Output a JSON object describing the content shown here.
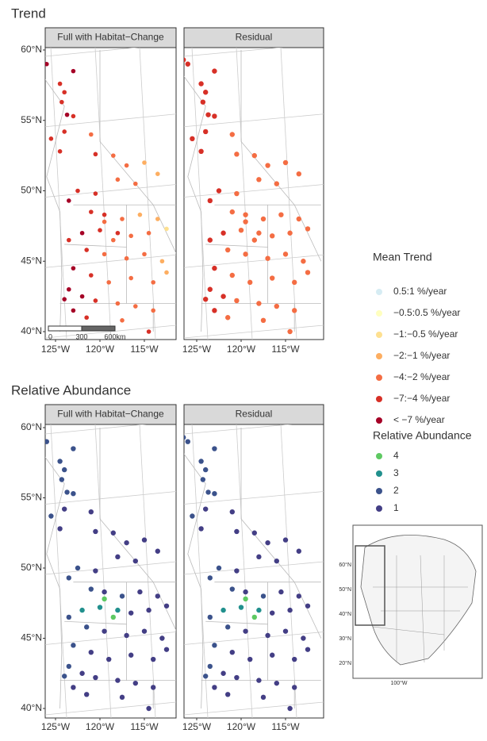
{
  "sections": [
    {
      "title": "Trend",
      "panels": [
        "Full with Habitat−Change",
        "Residual"
      ]
    },
    {
      "title": "Relative Abundance",
      "panels": [
        "Full with Habitat−Change",
        "Residual"
      ]
    }
  ],
  "lat_ticks": [
    {
      "value": 60,
      "label": "60°N"
    },
    {
      "value": 55,
      "label": "55°N"
    },
    {
      "value": 50,
      "label": "50°N"
    },
    {
      "value": 45,
      "label": "45°N"
    },
    {
      "value": 40,
      "label": "40°N"
    }
  ],
  "lon_ticks": [
    {
      "value": -125,
      "label": "125°W"
    },
    {
      "value": -120,
      "label": "120°W"
    },
    {
      "value": -115,
      "label": "115°W"
    }
  ],
  "scale_bar": [
    "0",
    "300",
    "600km"
  ],
  "trend_legend": {
    "title": "Mean Trend",
    "entries": [
      {
        "label": "0.5:1 %/year",
        "color": "#d6ecf3"
      },
      {
        "label": "−0.5:0.5 %/year",
        "color": "#ffffbf"
      },
      {
        "label": "−1:−0.5 %/year",
        "color": "#fee090"
      },
      {
        "label": "−2:−1 %/year",
        "color": "#fdae61"
      },
      {
        "label": "−4:−2 %/year",
        "color": "#f46d43"
      },
      {
        "label": "−7:−4 %/year",
        "color": "#d73027"
      },
      {
        "label": "< −7 %/year",
        "color": "#a50026"
      }
    ]
  },
  "abundance_legend": {
    "title": "Relative Abundance",
    "entries": [
      {
        "value": 4,
        "color": "#5ec962"
      },
      {
        "value": 3,
        "color": "#21908d"
      },
      {
        "value": 2,
        "color": "#3b528b"
      },
      {
        "value": 1,
        "color": "#433e85"
      }
    ]
  },
  "inset": {
    "lat_labels": [
      "60°N",
      "50°N",
      "40°N",
      "30°N",
      "20°N"
    ],
    "lon_label": "100°W"
  },
  "sites": [
    [
      -126.5,
      59.3,
      6,
      5,
      2
    ],
    [
      -126,
      59,
      6,
      5,
      2
    ],
    [
      -123,
      58.5,
      6,
      5,
      2
    ],
    [
      -124.5,
      57.6,
      5,
      5,
      2
    ],
    [
      -124,
      57,
      5,
      5,
      2
    ],
    [
      -124.3,
      56.3,
      5,
      5,
      2
    ],
    [
      -123.7,
      55.4,
      6,
      5,
      2
    ],
    [
      -123,
      55.3,
      5,
      5,
      2
    ],
    [
      -124,
      54.2,
      5,
      5,
      1
    ],
    [
      -125.5,
      53.7,
      5,
      5,
      2
    ],
    [
      -124.5,
      52.8,
      5,
      5,
      1
    ],
    [
      -121,
      54,
      4,
      4,
      1
    ],
    [
      -120.5,
      52.6,
      5,
      4,
      1
    ],
    [
      -118.5,
      52.5,
      4,
      4,
      1
    ],
    [
      -117,
      51.8,
      4,
      4,
      1
    ],
    [
      -115,
      52,
      3,
      4,
      1
    ],
    [
      -113.5,
      51.2,
      3,
      4,
      1
    ],
    [
      -116,
      50.5,
      4,
      4,
      1
    ],
    [
      -118,
      50.8,
      4,
      4,
      1
    ],
    [
      -120.5,
      49.8,
      5,
      4,
      1
    ],
    [
      -122.5,
      50,
      5,
      5,
      2
    ],
    [
      -123.5,
      49.3,
      6,
      5,
      2
    ],
    [
      -121,
      48.5,
      5,
      4,
      2
    ],
    [
      -119.5,
      48.3,
      5,
      4,
      1
    ],
    [
      -117.5,
      48,
      4,
      4,
      2
    ],
    [
      -115.5,
      48.3,
      3,
      4,
      1
    ],
    [
      -113.5,
      48,
      3,
      4,
      1
    ],
    [
      -112.5,
      47.3,
      2,
      4,
      1
    ],
    [
      -114.5,
      47,
      4,
      4,
      1
    ],
    [
      -116.5,
      46.8,
      4,
      4,
      1
    ],
    [
      -118,
      47,
      5,
      4,
      3
    ],
    [
      -120,
      47.2,
      5,
      4,
      3
    ],
    [
      -122,
      47,
      6,
      5,
      3
    ],
    [
      -123.5,
      46.5,
      5,
      5,
      2
    ],
    [
      -121.5,
      45.8,
      5,
      4,
      2
    ],
    [
      -119.5,
      45.5,
      4,
      4,
      1
    ],
    [
      -117,
      45.2,
      4,
      4,
      1
    ],
    [
      -115,
      45.5,
      4,
      4,
      1
    ],
    [
      -113,
      45,
      3,
      4,
      1
    ],
    [
      -123,
      44.5,
      6,
      5,
      2
    ],
    [
      -121,
      44,
      5,
      4,
      1
    ],
    [
      -119,
      43.5,
      4,
      4,
      1
    ],
    [
      -116.5,
      43.8,
      4,
      4,
      1
    ],
    [
      -114,
      43.5,
      4,
      4,
      1
    ],
    [
      -112.5,
      44.2,
      3,
      4,
      1
    ],
    [
      -123.5,
      43,
      6,
      5,
      2
    ],
    [
      -122,
      42.5,
      6,
      5,
      1
    ],
    [
      -124,
      42.3,
      6,
      5,
      2
    ],
    [
      -120.5,
      42.2,
      5,
      4,
      1
    ],
    [
      -118,
      42,
      4,
      4,
      1
    ],
    [
      -116,
      41.8,
      4,
      4,
      1
    ],
    [
      -114,
      41.5,
      4,
      4,
      1
    ],
    [
      -123,
      41.5,
      6,
      5,
      1
    ],
    [
      -121.5,
      41,
      5,
      4,
      1
    ],
    [
      -119.5,
      47.8,
      4,
      4,
      4
    ],
    [
      -118.5,
      46.5,
      4,
      4,
      4
    ],
    [
      -117.5,
      40.8,
      4,
      4,
      1
    ],
    [
      -114.5,
      40,
      5,
      4,
      1
    ]
  ]
}
